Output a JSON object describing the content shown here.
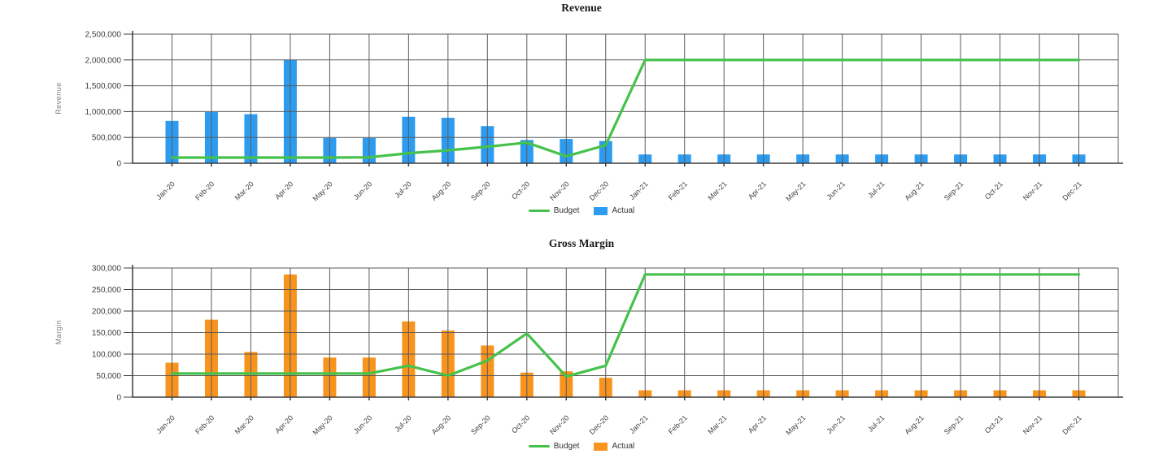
{
  "chart_data": [
    {
      "type": "combo-bar-line",
      "title": "Revenue",
      "ylabel": "Revenue",
      "xlabel": "",
      "ylim": [
        0,
        2500000
      ],
      "y_step": 500000,
      "grid": true,
      "legend_position": "bottom",
      "categories": [
        "Jan-20",
        "Feb-20",
        "Mar-20",
        "Apr-20",
        "May-20",
        "Jun-20",
        "Jul-20",
        "Aug-20",
        "Sep-20",
        "Oct-20",
        "Nov-20",
        "Dec-20",
        "Jan-21",
        "Feb-21",
        "Mar-21",
        "Apr-21",
        "May-21",
        "Jun-21",
        "Jul-21",
        "Aug-21",
        "Sep-21",
        "Oct-21",
        "Nov-21",
        "Dec-21"
      ],
      "series": [
        {
          "name": "Budget",
          "type": "line",
          "color": "#45C24B",
          "values": [
            110000,
            110000,
            110000,
            110000,
            110000,
            115000,
            195000,
            250000,
            320000,
            400000,
            135000,
            350000,
            2000000,
            2000000,
            2000000,
            2000000,
            2000000,
            2000000,
            2000000,
            2000000,
            2000000,
            2000000,
            2000000,
            2000000
          ]
        },
        {
          "name": "Actual",
          "type": "bar",
          "color": "#2D9CF0",
          "values": [
            820000,
            990000,
            950000,
            2000000,
            490000,
            490000,
            900000,
            880000,
            720000,
            450000,
            470000,
            430000,
            170000,
            170000,
            170000,
            170000,
            170000,
            170000,
            170000,
            170000,
            170000,
            170000,
            170000,
            170000
          ]
        }
      ]
    },
    {
      "type": "combo-bar-line",
      "title": "Gross Margin",
      "ylabel": "Margin",
      "xlabel": "",
      "ylim": [
        0,
        300000
      ],
      "y_step": 50000,
      "grid": true,
      "legend_position": "bottom",
      "categories": [
        "Jan-20",
        "Feb-20",
        "Mar-20",
        "Apr-20",
        "May-20",
        "Jun-20",
        "Jul-20",
        "Aug-20",
        "Sep-20",
        "Oct-20",
        "Nov-20",
        "Dec-20",
        "Jan-21",
        "Feb-21",
        "Mar-21",
        "Apr-21",
        "May-21",
        "Jun-21",
        "Jul-21",
        "Aug-21",
        "Sep-21",
        "Oct-21",
        "Nov-21",
        "Dec-21"
      ],
      "series": [
        {
          "name": "Budget",
          "type": "line",
          "color": "#45C24B",
          "values": [
            55000,
            55000,
            55000,
            55000,
            55000,
            55000,
            73000,
            50000,
            85000,
            148000,
            48000,
            73000,
            285000,
            285000,
            285000,
            285000,
            285000,
            285000,
            285000,
            285000,
            285000,
            285000,
            285000,
            285000
          ]
        },
        {
          "name": "Actual",
          "type": "bar",
          "color": "#F8941E",
          "values": [
            80000,
            180000,
            105000,
            285000,
            92000,
            92000,
            176000,
            155000,
            120000,
            57000,
            60000,
            45000,
            16000,
            16000,
            16000,
            16000,
            16000,
            16000,
            16000,
            16000,
            16000,
            16000,
            16000,
            16000
          ]
        }
      ]
    }
  ],
  "styles": {
    "grid_color": "#5a5a5a",
    "axis_color": "#3c3c3c",
    "tick_label_color": "#3f3f3f",
    "y_title_color": "#7f7f7f"
  }
}
